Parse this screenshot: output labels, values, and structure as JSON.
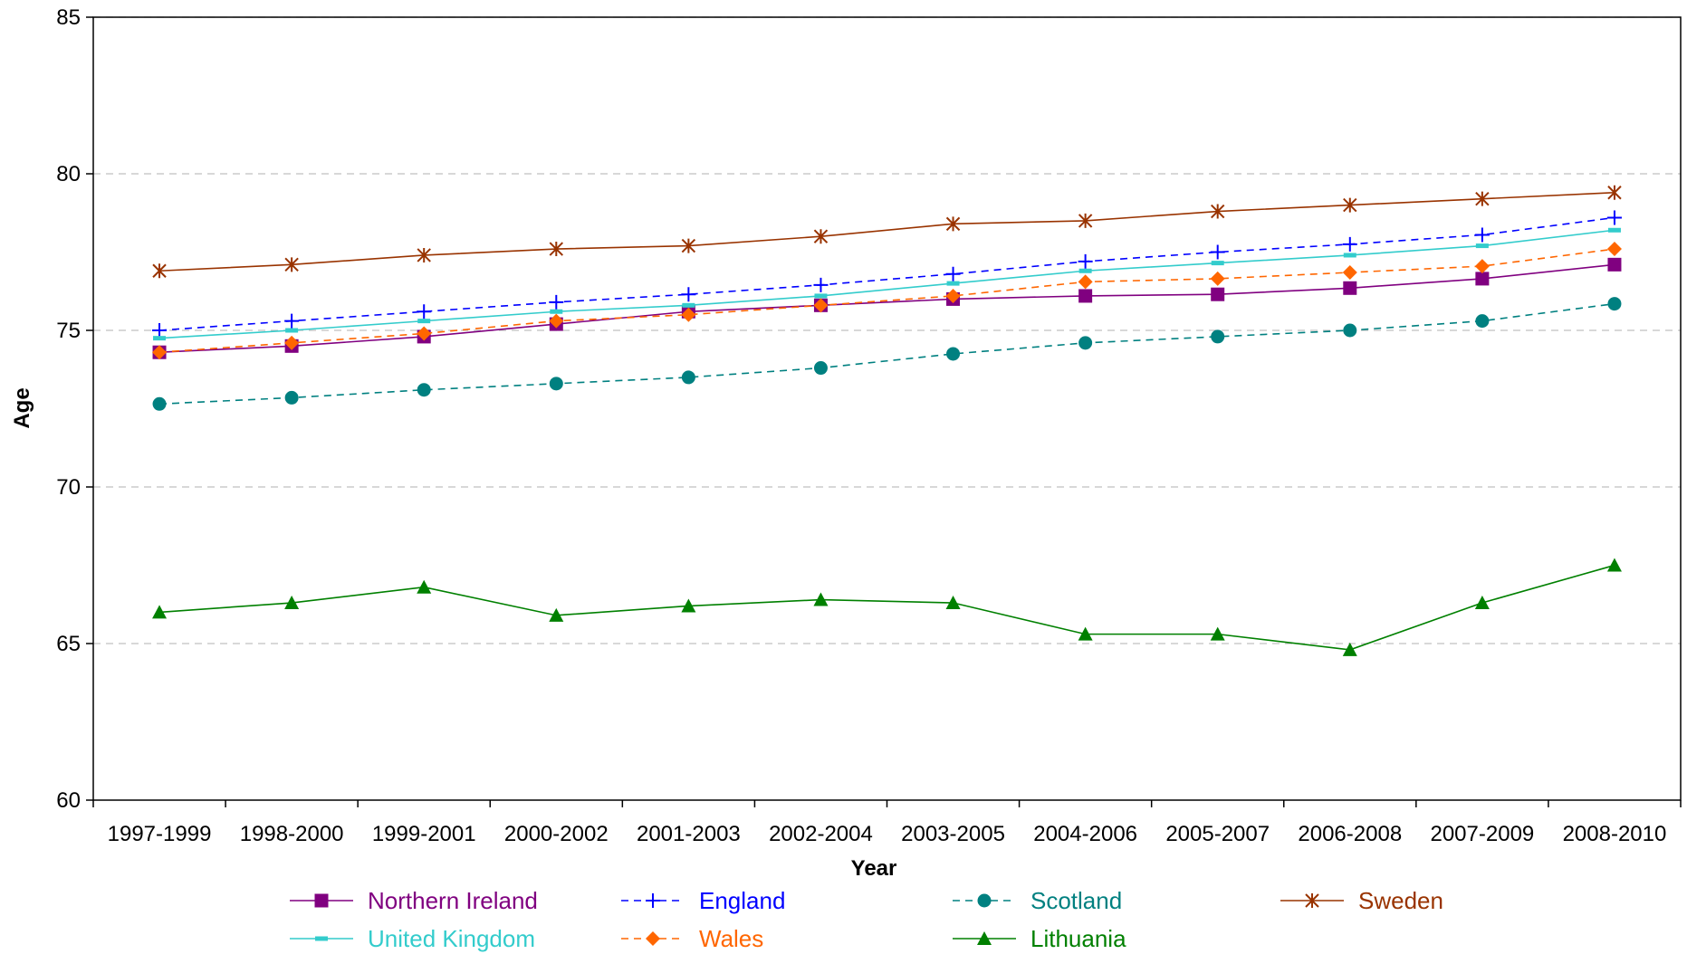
{
  "chart_data": {
    "type": "line",
    "title": "",
    "xlabel": "Year",
    "ylabel": "Age",
    "ylim": [
      60,
      85
    ],
    "yticks": [
      "60",
      "65",
      "70",
      "75",
      "80",
      "85"
    ],
    "grid": "horizontal dashed",
    "legend_position": "bottom",
    "categories": [
      "1997-1999",
      "1998-2000",
      "1999-2001",
      "2000-2002",
      "2001-2003",
      "2002-2004",
      "2003-2005",
      "2004-2006",
      "2005-2007",
      "2006-2008",
      "2007-2009",
      "2008-2010"
    ],
    "series": [
      {
        "name": "Northern Ireland",
        "color": "#800080",
        "dash": "solid",
        "marker": "square",
        "values": [
          74.3,
          74.5,
          74.8,
          75.2,
          75.6,
          75.8,
          76.0,
          76.1,
          76.15,
          76.35,
          76.65,
          77.1
        ]
      },
      {
        "name": "England",
        "color": "#0000ff",
        "dash": "dashed",
        "marker": "plus",
        "values": [
          75.0,
          75.3,
          75.6,
          75.9,
          76.15,
          76.45,
          76.8,
          77.2,
          77.5,
          77.75,
          78.05,
          78.6
        ]
      },
      {
        "name": "Scotland",
        "color": "#008080",
        "dash": "dashed",
        "marker": "circle",
        "values": [
          72.65,
          72.85,
          73.1,
          73.3,
          73.5,
          73.8,
          74.25,
          74.6,
          74.8,
          75.0,
          75.3,
          75.85
        ]
      },
      {
        "name": "Sweden",
        "color": "#993300",
        "dash": "solid",
        "marker": "star",
        "values": [
          76.9,
          77.1,
          77.4,
          77.6,
          77.7,
          78.0,
          78.4,
          78.5,
          78.8,
          79.0,
          79.2,
          79.4
        ]
      },
      {
        "name": "United Kingdom",
        "color": "#33cccc",
        "dash": "solid",
        "marker": "dash",
        "values": [
          74.75,
          75.0,
          75.3,
          75.6,
          75.8,
          76.1,
          76.5,
          76.9,
          77.15,
          77.4,
          77.7,
          78.2
        ]
      },
      {
        "name": "Wales",
        "color": "#ff6600",
        "dash": "dashed",
        "marker": "diamond",
        "values": [
          74.3,
          74.6,
          74.9,
          75.3,
          75.5,
          75.8,
          76.1,
          76.55,
          76.65,
          76.85,
          77.05,
          77.6
        ]
      },
      {
        "name": "Lithuania",
        "color": "#008000",
        "dash": "solid",
        "marker": "triangle",
        "values": [
          66.0,
          66.3,
          66.8,
          65.9,
          66.2,
          66.4,
          66.3,
          65.3,
          65.3,
          64.8,
          66.3,
          67.5
        ]
      }
    ]
  }
}
